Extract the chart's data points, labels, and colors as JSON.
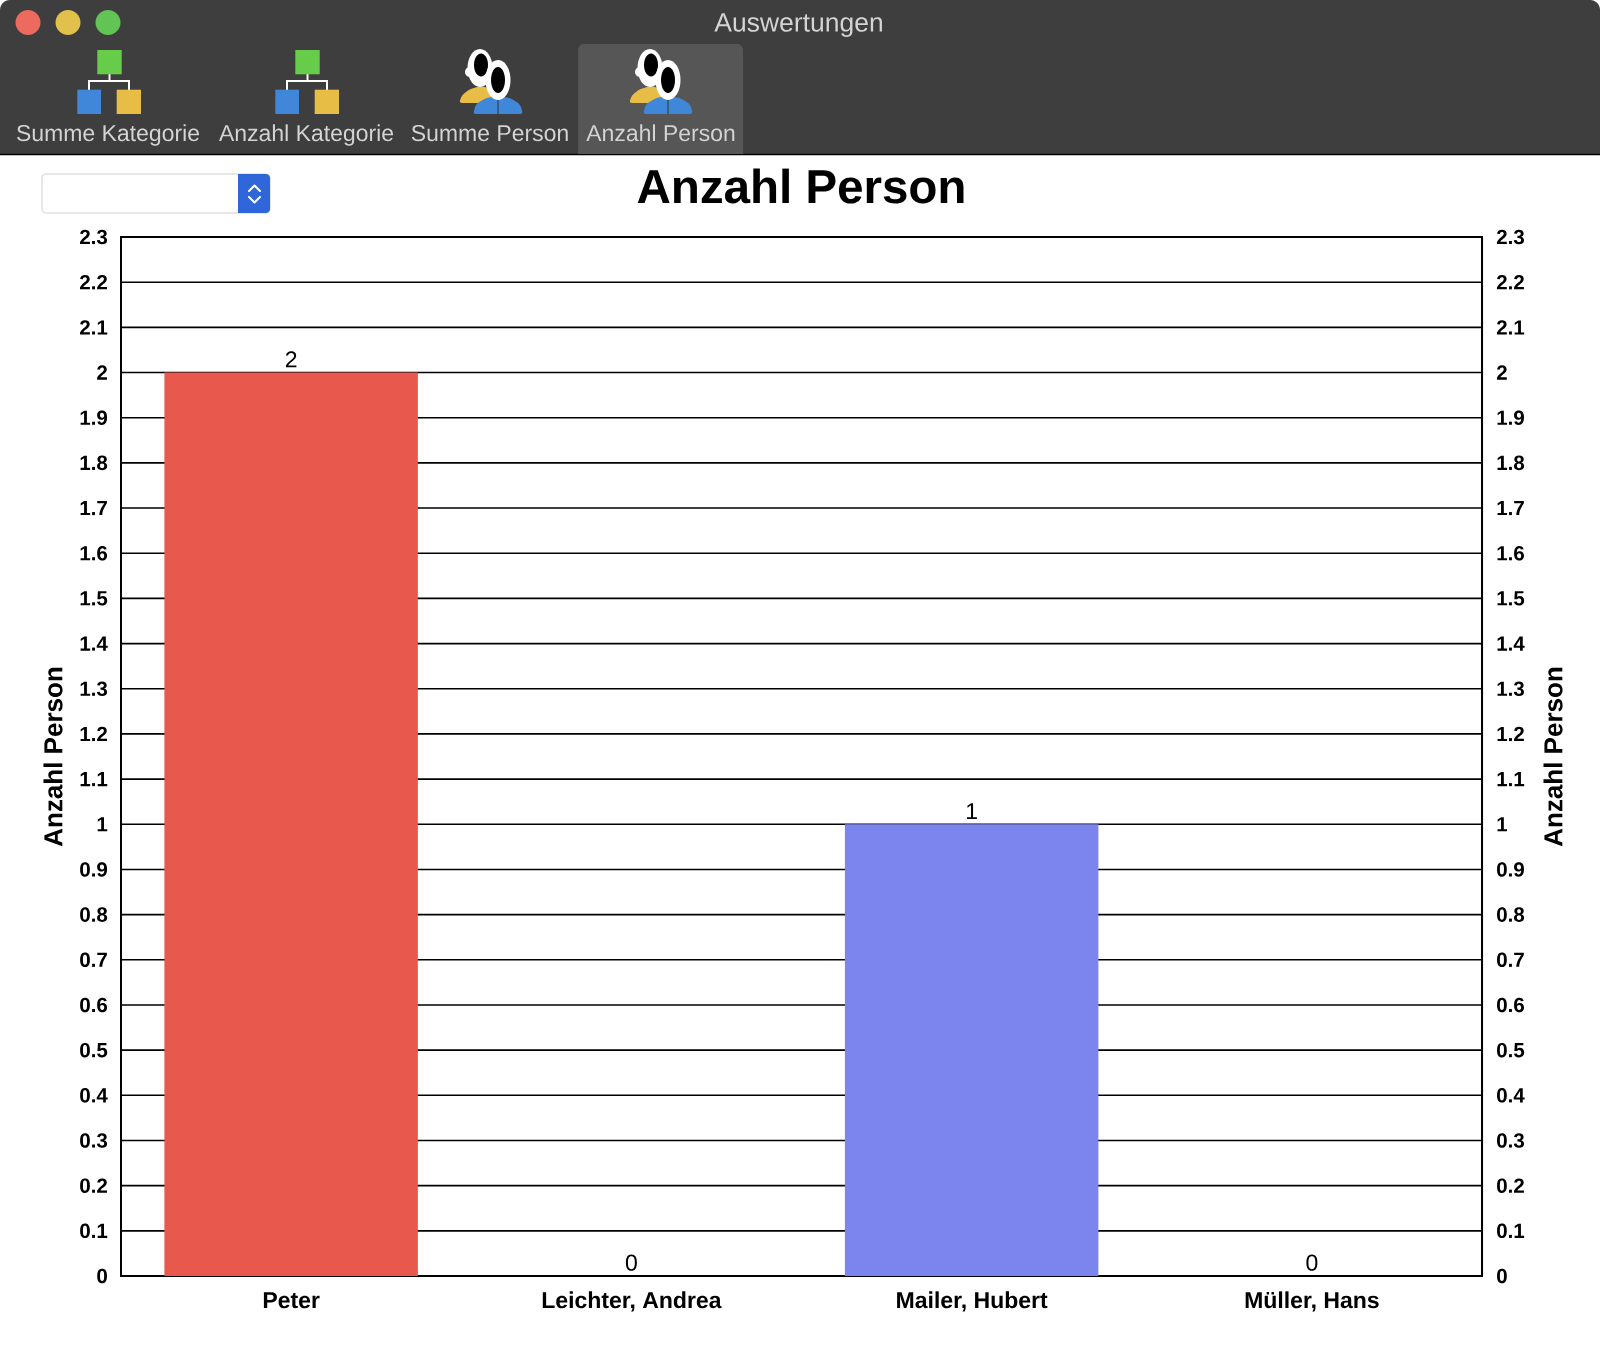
{
  "chart_data": {
    "type": "bar",
    "title": "Anzahl Person",
    "ylabel": "Anzahl Person",
    "y2label": "Anzahl Person",
    "categories": [
      "Peter",
      "Leichter, Andrea",
      "Mailer, Hubert",
      "Müller, Hans"
    ],
    "values": [
      2,
      0,
      1,
      0
    ],
    "colors": [
      "#e8584d",
      null,
      "#7c84ee",
      null
    ],
    "ylim": [
      0,
      2.3
    ],
    "yticks": [
      0,
      0.1,
      0.2,
      0.3,
      0.4,
      0.5,
      0.6,
      0.7,
      0.8,
      0.9,
      1,
      1.1,
      1.2,
      1.3,
      1.4,
      1.5,
      1.6,
      1.7,
      1.8,
      1.9,
      2,
      2.1,
      2.2,
      2.3
    ],
    "y2lim": [
      0,
      2.3
    ],
    "y2ticks": [
      0,
      0.1,
      0.2,
      0.3,
      0.4,
      0.5,
      0.6,
      0.7,
      0.8,
      0.9,
      1,
      1.1,
      1.2,
      1.3,
      1.4,
      1.5,
      1.6,
      1.7,
      1.8,
      1.9,
      2,
      2.1,
      2.2,
      2.3
    ],
    "grid": "y",
    "data_labels": true,
    "annotations": [
      "Auswertungen",
      "Summe Kategorie",
      "Anzahl Kategorie",
      "Summe Person",
      "Anzahl Person"
    ]
  }
}
